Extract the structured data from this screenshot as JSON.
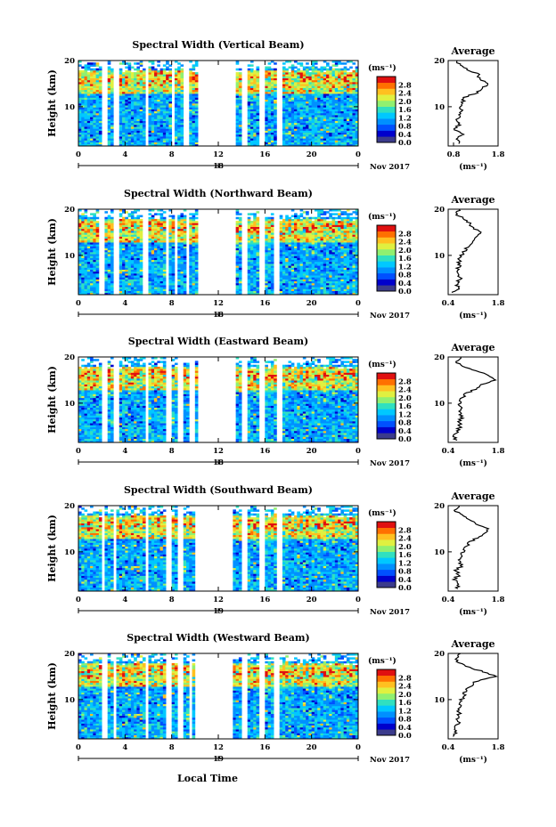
{
  "page": {
    "xlabel": "Local Time"
  },
  "colorbar": {
    "unit": "(ms⁻¹)",
    "ticks": [
      "0.0",
      "0.4",
      "0.8",
      "1.2",
      "1.6",
      "2.0",
      "2.4",
      "2.8"
    ],
    "colors": [
      "#3b3b8c",
      "#0000cc",
      "#0050ff",
      "#0090ff",
      "#00c8ff",
      "#30e0c0",
      "#90f070",
      "#e0f040",
      "#ffc020",
      "#ff7000",
      "#e01010"
    ]
  },
  "chart_data": [
    {
      "type": "heatmap",
      "title": "Spectral Width (Vertical Beam)",
      "ylabel": "Height (km)",
      "xticks": [
        "0",
        "4",
        "8",
        "12",
        "16",
        "20",
        "0"
      ],
      "date_tick": "18",
      "date_label": "Nov 2017",
      "xlim": [
        0,
        24
      ],
      "ylim": [
        1.5,
        20
      ],
      "yticks": [
        "10",
        "20"
      ],
      "gaps": [
        [
          2.0,
          2.5
        ],
        [
          3.0,
          3.5
        ],
        [
          5.7,
          6.0
        ],
        [
          8.0,
          8.3
        ],
        [
          8.9,
          9.5
        ],
        [
          10.2,
          13.4
        ],
        [
          14.0,
          14.6
        ],
        [
          15.6,
          16.0
        ],
        [
          17.0,
          17.5
        ]
      ],
      "average": {
        "title": "Average",
        "xlim": [
          0.4,
          1.8
        ],
        "xticks": [
          "0.8",
          "1.8"
        ],
        "unit": "(ms⁻¹)",
        "profile": [
          [
            2,
            0.72
          ],
          [
            3,
            0.62
          ],
          [
            4,
            0.78
          ],
          [
            5,
            0.6
          ],
          [
            6,
            0.7
          ],
          [
            7,
            0.64
          ],
          [
            8,
            0.7
          ],
          [
            9,
            0.78
          ],
          [
            10,
            0.75
          ],
          [
            11,
            0.82
          ],
          [
            12,
            0.85
          ],
          [
            13,
            1.2
          ],
          [
            14,
            1.35
          ],
          [
            15,
            1.5
          ],
          [
            16,
            1.3
          ],
          [
            17,
            1.25
          ],
          [
            18,
            0.95
          ],
          [
            19,
            0.7
          ],
          [
            20,
            0.65
          ]
        ]
      }
    },
    {
      "type": "heatmap",
      "title": "Spectral Width (Northward Beam)",
      "ylabel": "Height (km)",
      "xticks": [
        "0",
        "4",
        "8",
        "12",
        "16",
        "20",
        "0"
      ],
      "date_tick": "18",
      "date_label": "Nov 2017",
      "xlim": [
        0,
        24
      ],
      "ylim": [
        1.5,
        20
      ],
      "yticks": [
        "10",
        "20"
      ],
      "gaps": [
        [
          1.8,
          2.2
        ],
        [
          3.0,
          3.4
        ],
        [
          5.6,
          5.9
        ],
        [
          7.4,
          7.8
        ],
        [
          8.3,
          8.6
        ],
        [
          9.3,
          9.6
        ],
        [
          10.2,
          13.4
        ],
        [
          14.0,
          14.6
        ],
        [
          15.5,
          16.0
        ],
        [
          16.8,
          17.3
        ]
      ],
      "average": {
        "title": "Average",
        "xlim": [
          0.4,
          1.8
        ],
        "xticks": [
          "0.4",
          "1.8"
        ],
        "unit": "(ms⁻¹)",
        "profile": [
          [
            2,
            0.55
          ],
          [
            3,
            0.7
          ],
          [
            4,
            0.62
          ],
          [
            5,
            0.75
          ],
          [
            6,
            0.68
          ],
          [
            7,
            0.66
          ],
          [
            8,
            0.72
          ],
          [
            9,
            0.7
          ],
          [
            10,
            0.78
          ],
          [
            11,
            0.85
          ],
          [
            12,
            0.95
          ],
          [
            13,
            1.1
          ],
          [
            14,
            1.2
          ],
          [
            15,
            1.35
          ],
          [
            16,
            1.1
          ],
          [
            17,
            1.0
          ],
          [
            18,
            0.85
          ],
          [
            19,
            0.62
          ],
          [
            20,
            0.7
          ]
        ]
      }
    },
    {
      "type": "heatmap",
      "title": "Spectral Width (Eastward Beam)",
      "ylabel": "Height (km)",
      "xticks": [
        "0",
        "4",
        "8",
        "12",
        "16",
        "20",
        "0"
      ],
      "date_tick": "18",
      "date_label": "Nov 2017",
      "xlim": [
        0,
        24
      ],
      "ylim": [
        1.5,
        20
      ],
      "yticks": [
        "10",
        "20"
      ],
      "gaps": [
        [
          2.0,
          2.4
        ],
        [
          3.0,
          3.4
        ],
        [
          5.7,
          6.0
        ],
        [
          7.6,
          7.9
        ],
        [
          8.6,
          8.9
        ],
        [
          9.6,
          10.0
        ],
        [
          10.2,
          13.4
        ],
        [
          14.0,
          14.6
        ],
        [
          15.6,
          16.0
        ],
        [
          16.9,
          17.4
        ]
      ],
      "average": {
        "title": "Average",
        "xlim": [
          0.4,
          1.8
        ],
        "xticks": [
          "0.4",
          "1.8"
        ],
        "unit": "(ms⁻¹)",
        "profile": [
          [
            2,
            0.6
          ],
          [
            3,
            0.55
          ],
          [
            4,
            0.65
          ],
          [
            5,
            0.75
          ],
          [
            6,
            0.7
          ],
          [
            7,
            0.8
          ],
          [
            8,
            0.72
          ],
          [
            9,
            0.75
          ],
          [
            10,
            0.7
          ],
          [
            11,
            0.78
          ],
          [
            12,
            0.9
          ],
          [
            13,
            1.15
          ],
          [
            14,
            1.3
          ],
          [
            15,
            1.7
          ],
          [
            16,
            1.55
          ],
          [
            17,
            1.2
          ],
          [
            18,
            0.8
          ],
          [
            19,
            0.6
          ],
          [
            20,
            0.75
          ]
        ]
      }
    },
    {
      "type": "heatmap",
      "title": "Spectral Width (Southward Beam)",
      "ylabel": "Height (km)",
      "xticks": [
        "0",
        "4",
        "8",
        "12",
        "16",
        "20",
        "0"
      ],
      "date_tick": "19",
      "date_label": "Nov 2017",
      "xlim": [
        0,
        24
      ],
      "ylim": [
        1.5,
        20
      ],
      "yticks": [
        "10",
        "20"
      ],
      "gaps": [
        [
          1.9,
          2.3
        ],
        [
          3.0,
          3.3
        ],
        [
          5.7,
          6.0
        ],
        [
          7.6,
          7.9
        ],
        [
          8.6,
          8.9
        ],
        [
          10.0,
          13.3
        ],
        [
          14.0,
          14.5
        ],
        [
          15.5,
          15.9
        ],
        [
          16.9,
          17.4
        ]
      ],
      "average": {
        "title": "Average",
        "xlim": [
          0.4,
          1.8
        ],
        "xticks": [
          "0.4",
          "1.8"
        ],
        "unit": "(ms⁻¹)",
        "profile": [
          [
            2,
            0.62
          ],
          [
            3,
            0.7
          ],
          [
            4,
            0.55
          ],
          [
            5,
            0.72
          ],
          [
            6,
            0.6
          ],
          [
            7,
            0.8
          ],
          [
            8,
            0.7
          ],
          [
            9,
            0.75
          ],
          [
            10,
            0.8
          ],
          [
            11,
            0.9
          ],
          [
            12,
            1.0
          ],
          [
            13,
            1.2
          ],
          [
            14,
            1.4
          ],
          [
            15,
            1.5
          ],
          [
            16,
            1.2
          ],
          [
            17,
            1.0
          ],
          [
            18,
            0.8
          ],
          [
            19,
            0.55
          ],
          [
            20,
            0.7
          ]
        ]
      }
    },
    {
      "type": "heatmap",
      "title": "Spectral Width (Westward Beam)",
      "ylabel": "Height (km)",
      "xticks": [
        "0",
        "4",
        "8",
        "12",
        "16",
        "20",
        "0"
      ],
      "date_tick": "19",
      "date_label": "Nov 2017",
      "xlim": [
        0,
        24
      ],
      "ylim": [
        1.5,
        20
      ],
      "yticks": [
        "10",
        "20"
      ],
      "gaps": [
        [
          2.0,
          2.4
        ],
        [
          3.0,
          3.3
        ],
        [
          5.7,
          6.0
        ],
        [
          7.5,
          7.9
        ],
        [
          8.6,
          8.9
        ],
        [
          9.4,
          9.8
        ],
        [
          10.1,
          13.3
        ],
        [
          14.1,
          14.6
        ],
        [
          15.6,
          16.0
        ],
        [
          16.8,
          17.3
        ]
      ],
      "average": {
        "title": "Average",
        "xlim": [
          0.4,
          1.8
        ],
        "xticks": [
          "0.4",
          "1.8"
        ],
        "unit": "(ms⁻¹)",
        "profile": [
          [
            2,
            0.55
          ],
          [
            3,
            0.62
          ],
          [
            4,
            0.6
          ],
          [
            5,
            0.68
          ],
          [
            6,
            0.66
          ],
          [
            7,
            0.72
          ],
          [
            8,
            0.7
          ],
          [
            9,
            0.75
          ],
          [
            10,
            0.78
          ],
          [
            11,
            0.85
          ],
          [
            12,
            0.9
          ],
          [
            13,
            1.05
          ],
          [
            14,
            1.2
          ],
          [
            15,
            1.75
          ],
          [
            16,
            1.4
          ],
          [
            17,
            1.0
          ],
          [
            18,
            0.7
          ],
          [
            19,
            0.6
          ],
          [
            20,
            0.75
          ]
        ]
      }
    }
  ]
}
